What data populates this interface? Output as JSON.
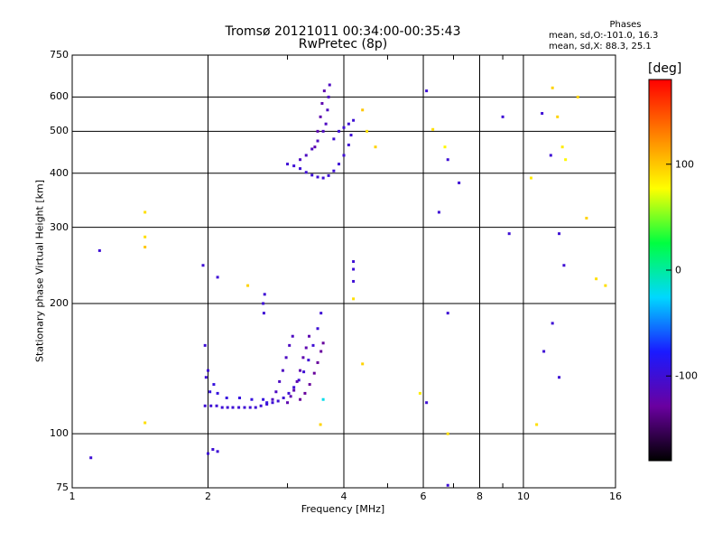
{
  "header": {
    "title_line1": "Tromsø 20121011 00:34:00-00:35:43",
    "title_line2": "RwPretec (8p)"
  },
  "phases_box": {
    "title": "Phases",
    "line_o": "mean, sd,O:-101.0, 16.3",
    "line_x": "mean, sd,X:  88.3, 25.1"
  },
  "colorbar": {
    "unit": "[deg]",
    "ticks": [
      {
        "label": "100",
        "value": 100
      },
      {
        "label": "0",
        "value": 0
      },
      {
        "label": "-100",
        "value": -100
      }
    ],
    "range": [
      -180,
      180
    ],
    "colors": [
      "#000000",
      "#6a00a0",
      "#1a1aff",
      "#00d8ff",
      "#00ff40",
      "#ffff00",
      "#ff8000",
      "#ff0000"
    ]
  },
  "chart_data": {
    "type": "scatter",
    "xlabel": "Frequency [MHz]",
    "ylabel": "Stationary phase Virtual Height [km]",
    "xscale": "log",
    "yscale": "log",
    "xlim": [
      1,
      16
    ],
    "ylim": [
      75,
      750
    ],
    "grid": true,
    "legend": "colorbar on right",
    "xticks": [
      {
        "v": 1,
        "label": "1"
      },
      {
        "v": 2,
        "label": "2"
      },
      {
        "v": 4,
        "label": "4"
      },
      {
        "v": 6,
        "label": "6"
      },
      {
        "v": 8,
        "label": "8"
      },
      {
        "v": 10,
        "label": "10"
      },
      {
        "v": 16,
        "label": "16"
      }
    ],
    "xminor": [
      3,
      5,
      7,
      9
    ],
    "yticks": [
      {
        "v": 75,
        "label": "75"
      },
      {
        "v": 100,
        "label": "100"
      },
      {
        "v": 200,
        "label": "200"
      },
      {
        "v": 300,
        "label": "300"
      },
      {
        "v": 400,
        "label": "400"
      },
      {
        "v": 500,
        "label": "500"
      },
      {
        "v": 600,
        "label": "600"
      },
      {
        "v": 750,
        "label": "750"
      }
    ],
    "series": [
      {
        "description": "O-mode trace",
        "points": [
          [
            1.97,
            116,
            -100
          ],
          [
            2.03,
            116,
            -100
          ],
          [
            2.09,
            116,
            -100
          ],
          [
            2.15,
            115,
            -100
          ],
          [
            2.21,
            115,
            -100
          ],
          [
            2.27,
            115,
            -100
          ],
          [
            2.34,
            115,
            -100
          ],
          [
            2.41,
            115,
            -100
          ],
          [
            2.48,
            115,
            -100
          ],
          [
            2.55,
            115,
            -100
          ],
          [
            2.62,
            116,
            -100
          ],
          [
            2.7,
            117,
            -100
          ],
          [
            2.78,
            118,
            -100
          ],
          [
            2.86,
            119,
            -100
          ],
          [
            2.94,
            121,
            -100
          ],
          [
            3.02,
            124,
            -100
          ],
          [
            3.1,
            128,
            -100
          ],
          [
            3.18,
            133,
            -100
          ],
          [
            3.26,
            139,
            -100
          ],
          [
            3.34,
            148,
            -100
          ],
          [
            3.42,
            160,
            -100
          ],
          [
            3.5,
            175,
            -100
          ],
          [
            3.56,
            190,
            -100
          ],
          [
            2.02,
            125,
            -95
          ],
          [
            2.06,
            130,
            -95
          ],
          [
            2.1,
            124,
            -95
          ],
          [
            2.2,
            121,
            -95
          ],
          [
            2.35,
            121,
            -95
          ],
          [
            2.5,
            120,
            -95
          ],
          [
            2.65,
            120,
            -95
          ],
          [
            2.7,
            118,
            -95
          ],
          [
            2.78,
            120,
            -110
          ],
          [
            2.83,
            125,
            -110
          ],
          [
            2.88,
            132,
            -110
          ],
          [
            2.93,
            140,
            -110
          ],
          [
            2.98,
            150,
            -110
          ],
          [
            3.03,
            160,
            -110
          ],
          [
            3.08,
            168,
            -110
          ],
          [
            3.0,
            118,
            -120
          ],
          [
            3.05,
            122,
            -120
          ],
          [
            3.1,
            126,
            -120
          ],
          [
            3.15,
            132,
            -120
          ],
          [
            3.2,
            140,
            -120
          ],
          [
            3.25,
            150,
            -120
          ],
          [
            3.3,
            158,
            -120
          ],
          [
            3.35,
            168,
            -120
          ],
          [
            3.2,
            120,
            -130
          ],
          [
            3.28,
            124,
            -130
          ],
          [
            3.36,
            130,
            -130
          ],
          [
            3.44,
            138,
            -130
          ],
          [
            3.5,
            146,
            -130
          ],
          [
            3.56,
            155,
            -130
          ],
          [
            3.6,
            162,
            -130
          ],
          [
            2.65,
            200,
            -100
          ],
          [
            2.67,
            210,
            -100
          ],
          [
            2.66,
            190,
            -100
          ],
          [
            1.97,
            160,
            -100
          ],
          [
            2.0,
            140,
            -100
          ],
          [
            1.98,
            135,
            -100
          ],
          [
            3.0,
            420,
            -100
          ],
          [
            3.1,
            416,
            -100
          ],
          [
            3.2,
            410,
            -100
          ],
          [
            3.3,
            402,
            -100
          ],
          [
            3.4,
            396,
            -100
          ],
          [
            3.5,
            392,
            -100
          ],
          [
            3.6,
            390,
            -100
          ],
          [
            3.7,
            395,
            -100
          ],
          [
            3.8,
            405,
            -100
          ],
          [
            3.9,
            420,
            -100
          ],
          [
            4.0,
            440,
            -100
          ],
          [
            4.1,
            465,
            -100
          ],
          [
            4.15,
            490,
            -100
          ],
          [
            4.2,
            530,
            -100
          ],
          [
            3.2,
            430,
            -110
          ],
          [
            3.3,
            440,
            -110
          ],
          [
            3.4,
            455,
            -110
          ],
          [
            3.5,
            475,
            -110
          ],
          [
            3.6,
            500,
            -110
          ],
          [
            3.65,
            520,
            -110
          ],
          [
            3.68,
            560,
            -110
          ],
          [
            3.7,
            600,
            -110
          ],
          [
            3.72,
            640,
            -110
          ],
          [
            3.45,
            460,
            -120
          ],
          [
            3.5,
            500,
            -120
          ],
          [
            3.55,
            540,
            -120
          ],
          [
            3.58,
            580,
            -120
          ],
          [
            3.62,
            620,
            -120
          ],
          [
            3.8,
            480,
            -100
          ],
          [
            3.9,
            500,
            -100
          ],
          [
            4.0,
            510,
            -100
          ],
          [
            4.1,
            520,
            -100
          ],
          [
            1.1,
            88,
            -100
          ],
          [
            2.0,
            90,
            -100
          ],
          [
            2.05,
            92,
            -100
          ],
          [
            2.1,
            91,
            -100
          ],
          [
            1.15,
            265,
            -100
          ],
          [
            1.95,
            245,
            -100
          ],
          [
            2.1,
            230,
            -100
          ],
          [
            4.2,
            250,
            -100
          ],
          [
            4.2,
            240,
            -100
          ],
          [
            4.2,
            225,
            -100
          ],
          [
            6.1,
            620,
            -100
          ],
          [
            6.5,
            325,
            -100
          ],
          [
            6.8,
            430,
            -100
          ],
          [
            7.2,
            380,
            -100
          ],
          [
            9.0,
            540,
            -100
          ],
          [
            9.3,
            290,
            -100
          ],
          [
            11.0,
            550,
            -100
          ],
          [
            11.5,
            440,
            -100
          ],
          [
            12.0,
            290,
            -100
          ],
          [
            12.3,
            245,
            -100
          ],
          [
            11.6,
            180,
            -100
          ],
          [
            11.1,
            155,
            -100
          ],
          [
            12.0,
            135,
            -100
          ],
          [
            6.1,
            118,
            -100
          ],
          [
            6.8,
            190,
            -100
          ],
          [
            6.8,
            76,
            -100
          ]
        ]
      },
      {
        "description": "X-mode echoes",
        "points": [
          [
            1.45,
            325,
            90
          ],
          [
            1.45,
            285,
            90
          ],
          [
            1.45,
            270,
            100
          ],
          [
            1.45,
            106,
            90
          ],
          [
            2.45,
            220,
            95
          ],
          [
            3.55,
            105,
            95
          ],
          [
            4.2,
            205,
            90
          ],
          [
            4.7,
            460,
            95
          ],
          [
            4.4,
            560,
            100
          ],
          [
            5.9,
            124,
            85
          ],
          [
            6.3,
            505,
            90
          ],
          [
            6.7,
            460,
            80
          ],
          [
            6.8,
            100,
            90
          ],
          [
            10.4,
            390,
            85
          ],
          [
            10.7,
            105,
            90
          ],
          [
            11.6,
            630,
            95
          ],
          [
            11.9,
            540,
            95
          ],
          [
            12.2,
            460,
            85
          ],
          [
            12.4,
            430,
            80
          ],
          [
            13.2,
            600,
            95
          ],
          [
            13.8,
            315,
            95
          ],
          [
            14.5,
            228,
            90
          ],
          [
            15.2,
            220,
            90
          ],
          [
            4.5,
            500,
            90
          ],
          [
            4.4,
            145,
            95
          ],
          [
            3.6,
            120,
            -20
          ]
        ]
      }
    ]
  }
}
